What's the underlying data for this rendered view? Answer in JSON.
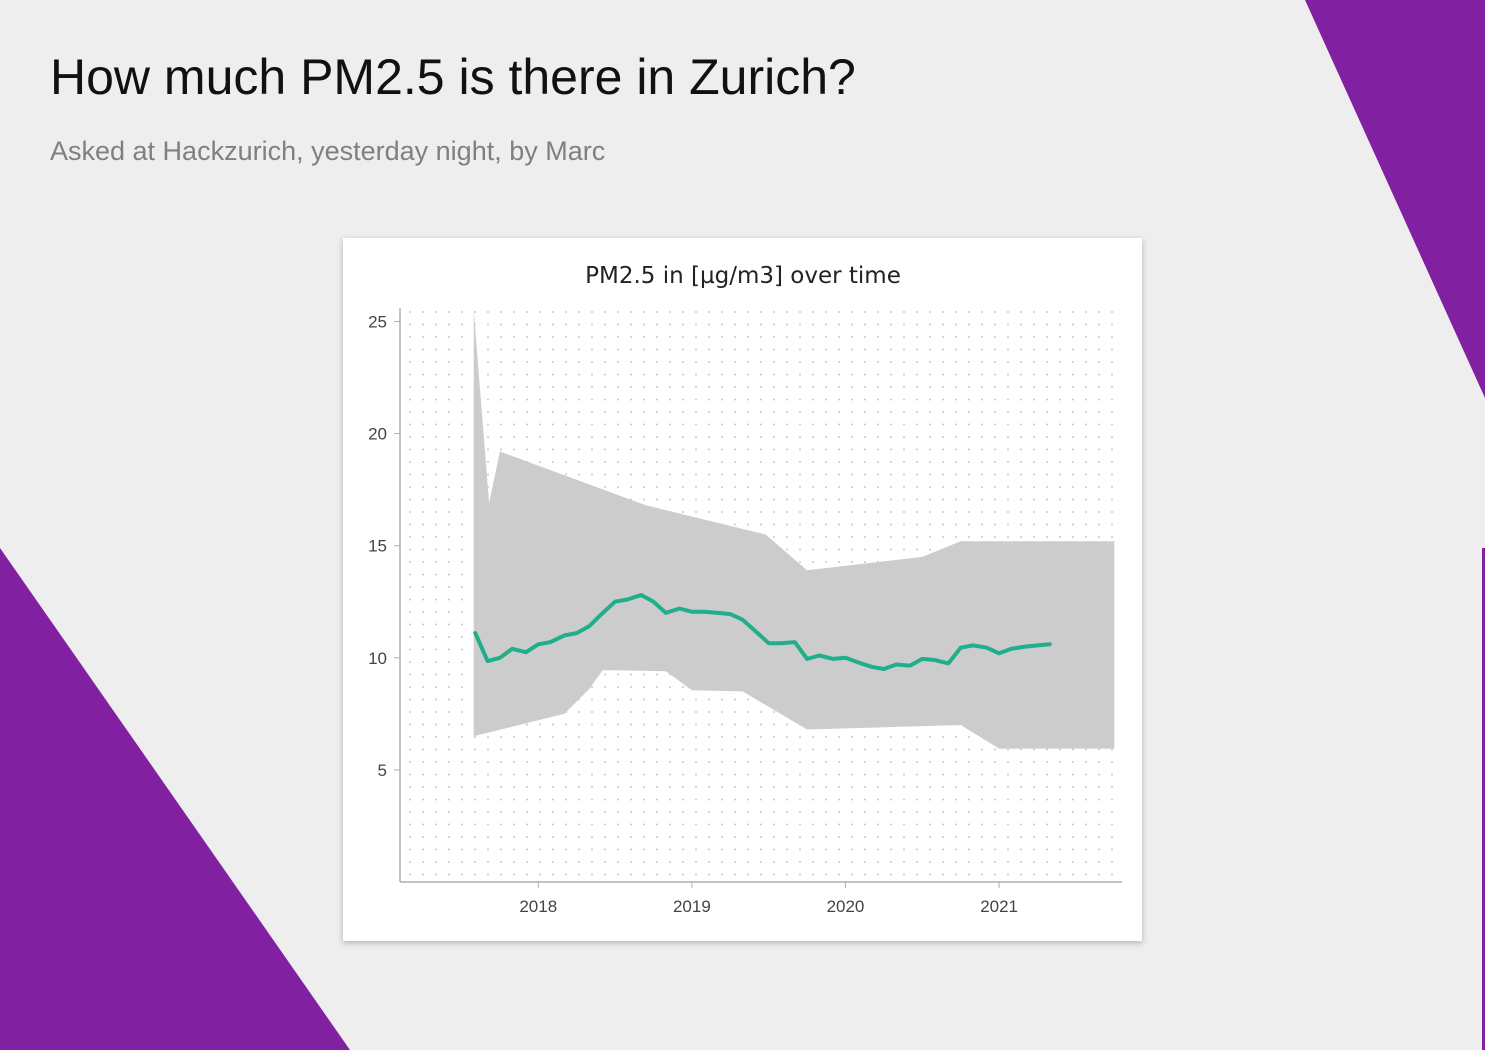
{
  "header": {
    "title": "How much PM2.5 is there in Zurich?",
    "subtitle": "Asked at Hackzurich, yesterday night, by Marc"
  },
  "colors": {
    "background": "#eeeeee",
    "accent_shapes": "#8220a2",
    "line": "#21ae8a",
    "band": "#cccccc"
  },
  "chart_data": {
    "type": "line",
    "title": "PM2.5 in [µg/m3] over time",
    "xlabel": "",
    "ylabel": "",
    "xlim": [
      2017.1,
      2021.8
    ],
    "ylim": [
      0.0,
      25.6
    ],
    "x_ticks": [
      2018,
      2019,
      2020,
      2021
    ],
    "y_ticks": [
      5,
      10,
      15,
      20,
      25
    ],
    "grid": "dotted",
    "legend": "none",
    "series": [
      {
        "x": [
          2017.59,
          2017.67,
          2017.75,
          2017.83,
          2017.92,
          2018.0,
          2018.08,
          2018.17,
          2018.25,
          2018.33,
          2018.42,
          2018.5,
          2018.58,
          2018.67,
          2018.75,
          2018.83,
          2018.92,
          2019.0,
          2019.08,
          2019.17,
          2019.25,
          2019.33,
          2019.42,
          2019.5,
          2019.58,
          2019.67,
          2019.75,
          2019.83,
          2019.92,
          2020.0,
          2020.08,
          2020.17,
          2020.25,
          2020.33,
          2020.42,
          2020.5,
          2020.58,
          2020.67,
          2020.75,
          2020.83,
          2020.92,
          2021.0,
          2021.08,
          2021.17,
          2021.25,
          2021.33
        ],
        "values": [
          11.1,
          9.85,
          10.0,
          10.4,
          10.25,
          10.6,
          10.7,
          11.0,
          11.1,
          11.4,
          12.0,
          12.5,
          12.6,
          12.8,
          12.5,
          12.0,
          12.2,
          12.05,
          12.05,
          12.0,
          11.95,
          11.7,
          11.15,
          10.65,
          10.65,
          10.7,
          9.95,
          10.1,
          9.95,
          10.0,
          9.8,
          9.6,
          9.5,
          9.7,
          9.65,
          9.95,
          9.9,
          9.75,
          10.45,
          10.55,
          10.45,
          10.2,
          10.4,
          10.5,
          10.55,
          10.6
        ]
      }
    ],
    "band": {
      "upper": {
        "x": [
          2017.58,
          2017.68,
          2017.75,
          2018.7,
          2019.48,
          2019.75,
          2020.5,
          2020.75,
          2021.75
        ],
        "values": [
          25.5,
          16.9,
          19.2,
          16.8,
          15.5,
          13.9,
          14.5,
          15.2,
          15.2
        ]
      },
      "lower": {
        "x": [
          2017.58,
          2018.17,
          2018.33,
          2018.42,
          2018.83,
          2019.0,
          2019.33,
          2019.75,
          2020.75,
          2021.0,
          2021.75
        ],
        "values": [
          6.5,
          7.5,
          8.6,
          9.45,
          9.4,
          8.55,
          8.5,
          6.8,
          7.0,
          5.95,
          5.95
        ]
      }
    }
  }
}
